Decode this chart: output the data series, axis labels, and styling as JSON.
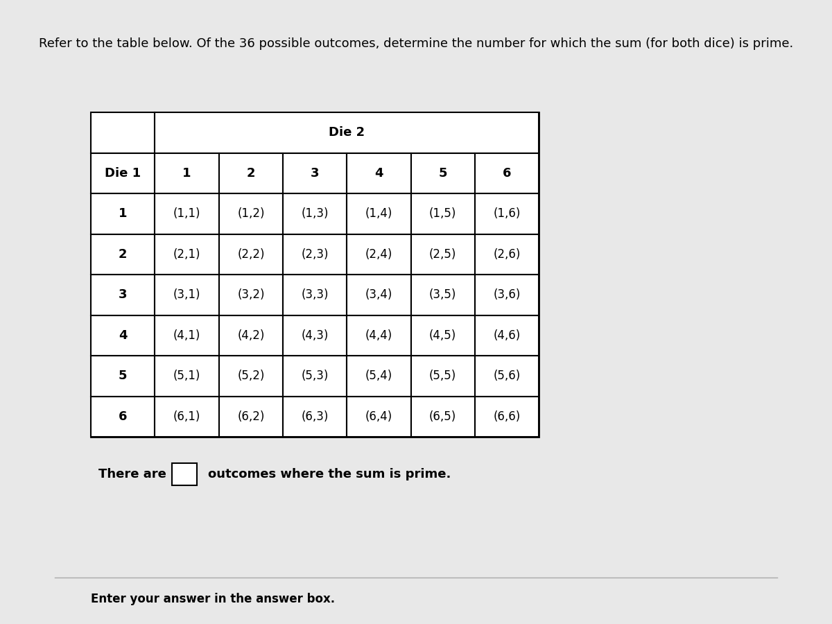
{
  "title": "Refer to the table below. Of the 36 possible outcomes, determine the number for which the sum (for both dice) is prime.",
  "die2_label": "Die 2",
  "die1_label": "Die 1",
  "col_headers": [
    "1",
    "2",
    "3",
    "4",
    "5",
    "6"
  ],
  "row_headers": [
    "1",
    "2",
    "3",
    "4",
    "5",
    "6"
  ],
  "table_data": [
    [
      "(1,1)",
      "(1,2)",
      "(1,3)",
      "(1,4)",
      "(1,5)",
      "(1,6)"
    ],
    [
      "(2,1)",
      "(2,2)",
      "(2,3)",
      "(2,4)",
      "(2,5)",
      "(2,6)"
    ],
    [
      "(3,1)",
      "(3,2)",
      "(3,3)",
      "(3,4)",
      "(3,5)",
      "(3,6)"
    ],
    [
      "(4,1)",
      "(4,2)",
      "(4,3)",
      "(4,4)",
      "(4,5)",
      "(4,6)"
    ],
    [
      "(5,1)",
      "(5,2)",
      "(5,3)",
      "(5,4)",
      "(5,5)",
      "(5,6)"
    ],
    [
      "(6,1)",
      "(6,2)",
      "(6,3)",
      "(6,4)",
      "(6,5)",
      "(6,6)"
    ]
  ],
  "footer_text": "There are",
  "footer_text2": "outcomes where the sum is prime.",
  "enter_text": "Enter your answer in the answer box.",
  "bg_color": "#e8e8e8",
  "table_bg": "#ffffff",
  "border_color": "#000000",
  "text_color": "#000000",
  "title_fontsize": 13,
  "header_fontsize": 13,
  "cell_fontsize": 12,
  "footer_fontsize": 13,
  "enter_fontsize": 12
}
